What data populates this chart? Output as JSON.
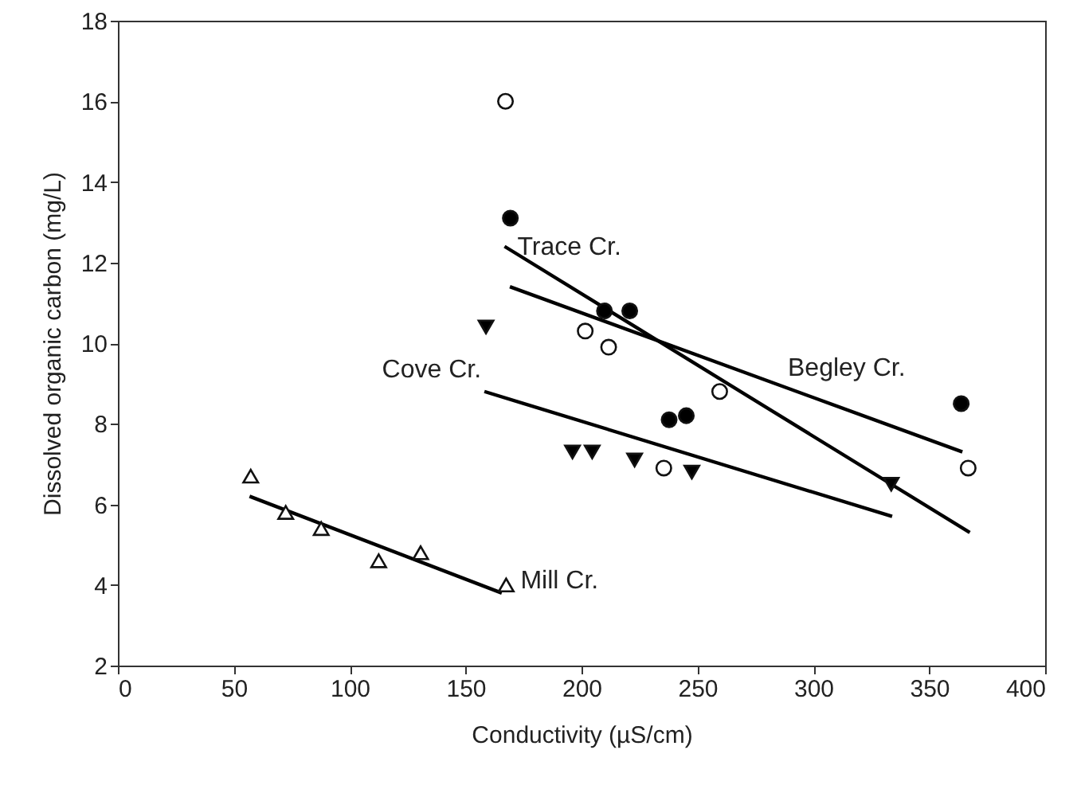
{
  "chart_data": {
    "type": "scatter",
    "xlabel": "Conductivity (µS/cm)",
    "ylabel": "Dissolved organic carbon (mg/L)",
    "xlim": [
      0,
      400
    ],
    "xticks": [
      0,
      50,
      100,
      150,
      200,
      250,
      300,
      350,
      400
    ],
    "ylim": [
      2,
      18
    ],
    "yticks": [
      2,
      4,
      6,
      8,
      10,
      12,
      14,
      16,
      18
    ],
    "grid": false,
    "series": [
      {
        "marker": "circle",
        "color": "#ffffff",
        "x": [
          167.2,
          201.6,
          211.7,
          259.6,
          235.5,
          366.8
        ],
        "values": [
          16.0,
          10.3,
          9.9,
          8.8,
          6.9,
          6.9
        ]
      },
      {
        "marker": "circle",
        "color": "#000000",
        "x": [
          169.3,
          209.9,
          220.8,
          237.8,
          245.2,
          363.8
        ],
        "values": [
          13.1,
          10.8,
          10.8,
          8.1,
          8.2,
          8.5
        ]
      },
      {
        "marker": "triangle-down",
        "color": "#000000",
        "x": [
          158.8,
          196.1,
          204.6,
          222.9,
          247.6,
          333.6
        ],
        "values": [
          10.4,
          7.3,
          7.3,
          7.1,
          6.8,
          6.5
        ]
      },
      {
        "marker": "triangle",
        "color": "#ffffff",
        "x": [
          57.3,
          72.4,
          87.7,
          112.5,
          130.6,
          167.5
        ],
        "values": [
          6.7,
          5.8,
          5.4,
          4.6,
          4.8,
          4.0
        ]
      },
      {
        "type": "line",
        "line_style": "solid",
        "color": "#000000",
        "x": [
          166.8,
          367.5
        ],
        "values": [
          12.4,
          5.3
        ]
      },
      {
        "type": "line",
        "line_style": "solid",
        "color": "#000000",
        "x": [
          169.1,
          364.3
        ],
        "values": [
          11.4,
          7.3
        ]
      },
      {
        "type": "line",
        "line_style": "solid",
        "color": "#000000",
        "x": [
          158.1,
          334.0
        ],
        "values": [
          8.8,
          5.7
        ]
      },
      {
        "type": "line",
        "line_style": "solid",
        "color": "#000000",
        "x": [
          56.8,
          165.6
        ],
        "values": [
          6.2,
          3.8
        ]
      }
    ],
    "annotations": [
      {
        "text": "Trace Cr.",
        "x": 166.8,
        "y": 12.4
      },
      {
        "text": "Cove Cr.",
        "x": 158.1,
        "y": 8.8
      },
      {
        "text": "Begley Cr.",
        "x": 289,
        "y": 8.88
      },
      {
        "text": "Mill Cr.",
        "x": 167.5,
        "y": 4.0
      }
    ]
  }
}
